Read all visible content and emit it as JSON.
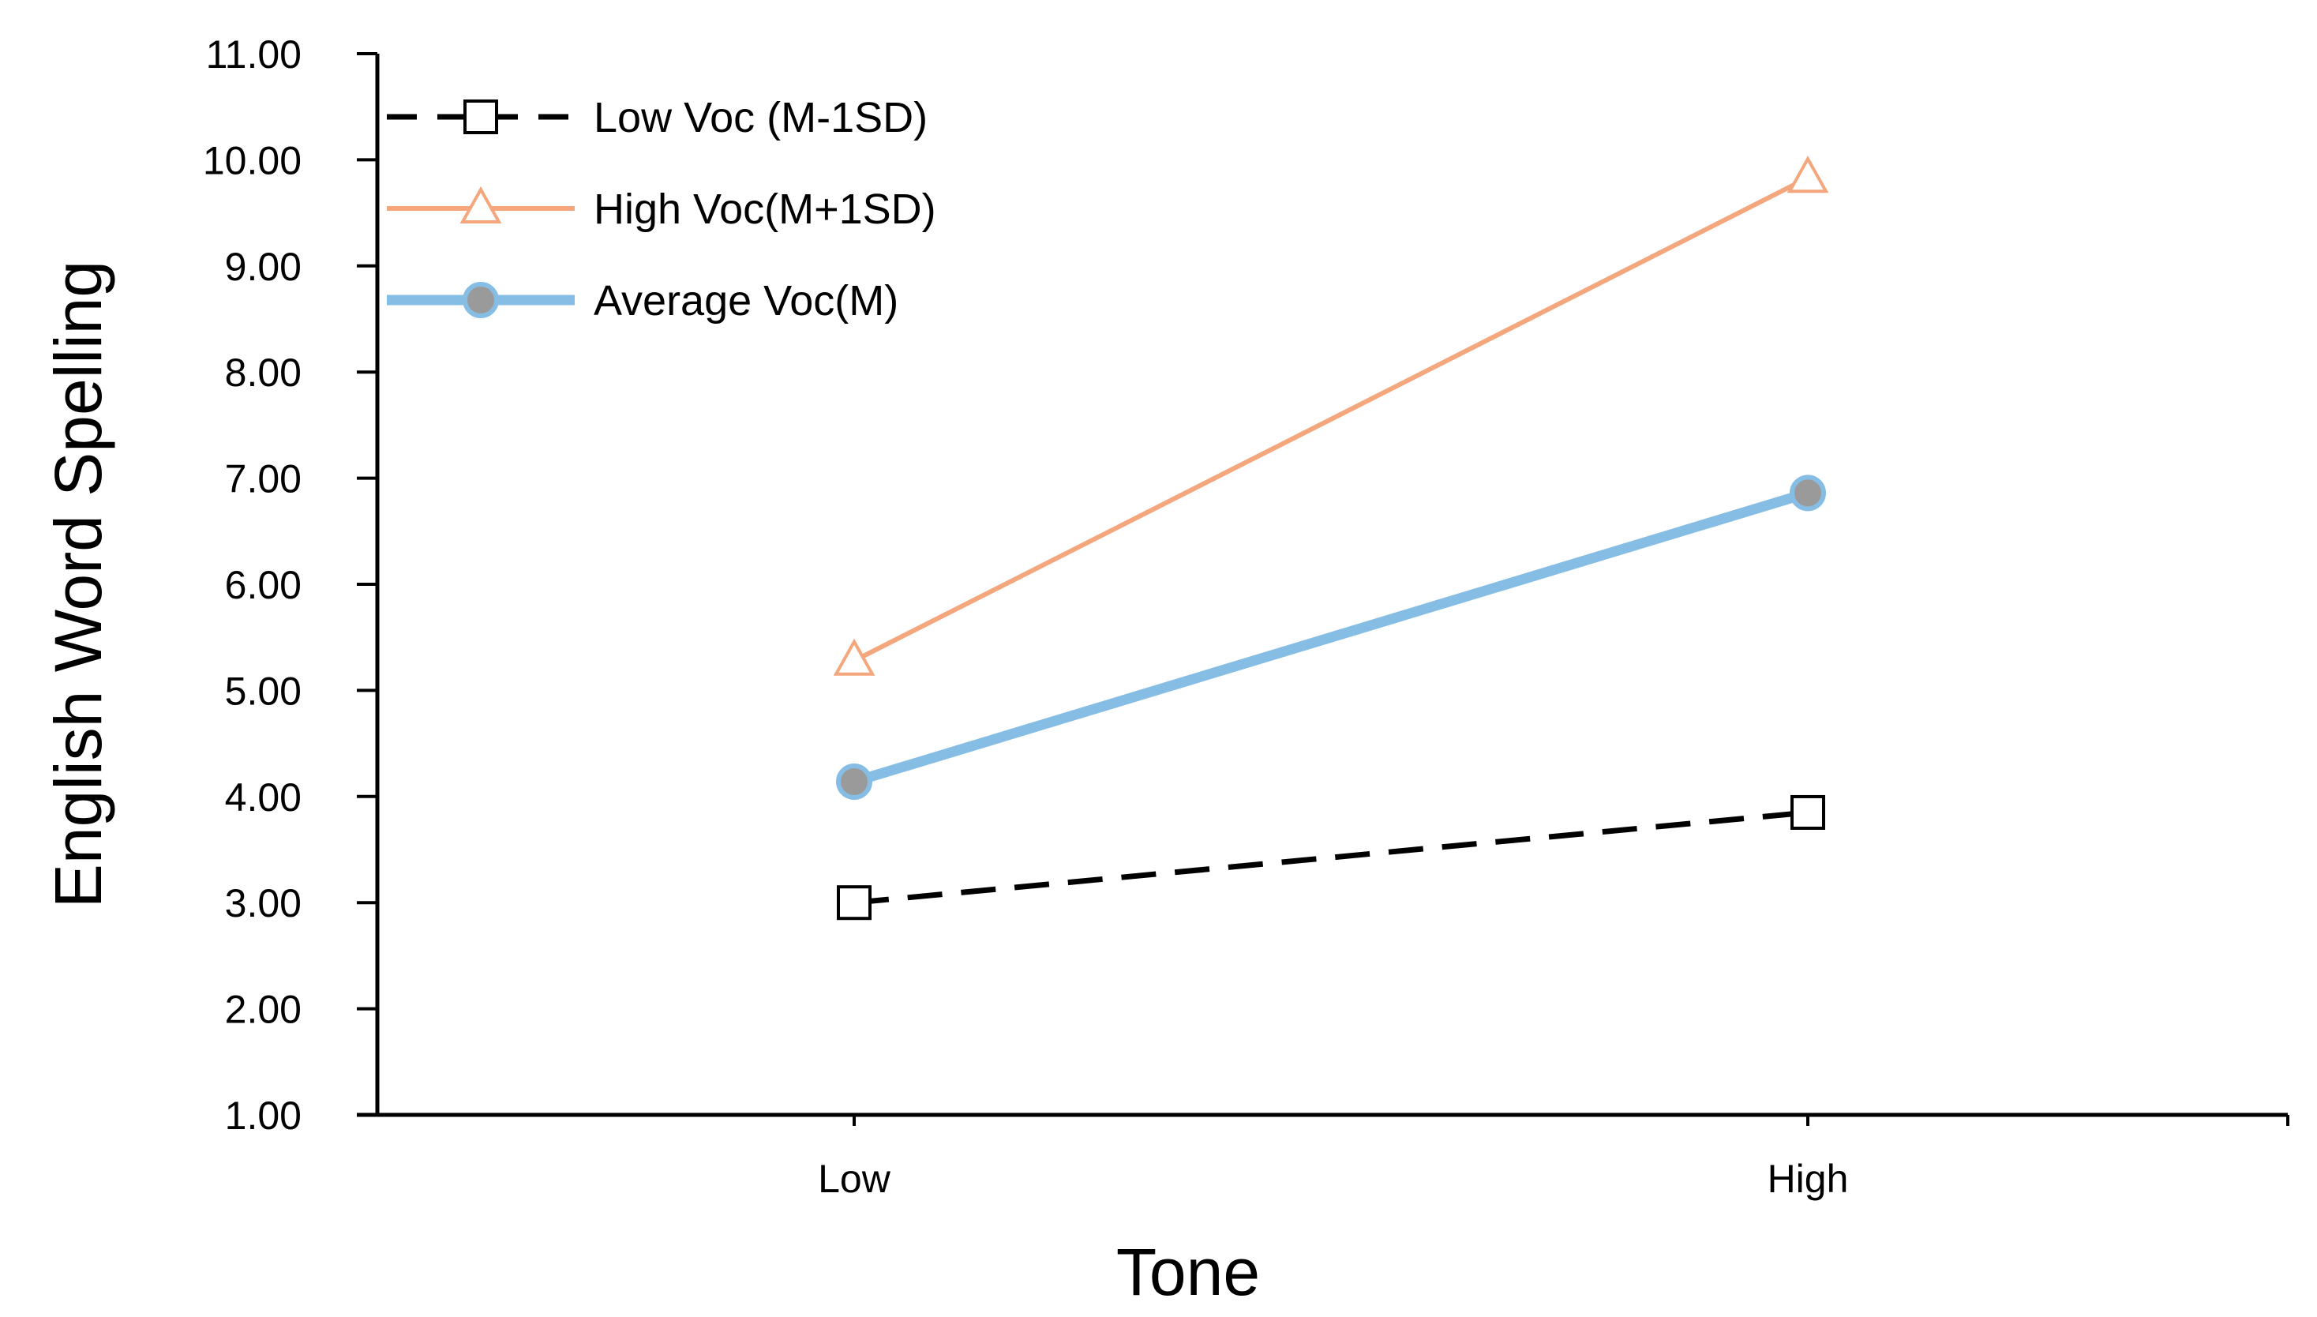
{
  "chart_data": {
    "type": "line",
    "title": "",
    "xlabel": "Tone",
    "ylabel": "English Word Spelling",
    "categories": [
      "Low",
      "High"
    ],
    "ylim": [
      1.0,
      11.0
    ],
    "yticks": [
      "1.00",
      "2.00",
      "3.00",
      "4.00",
      "5.00",
      "6.00",
      "7.00",
      "8.00",
      "9.00",
      "10.00",
      "11.00"
    ],
    "grid": false,
    "legend_position": "top-left",
    "series": [
      {
        "name": "Low Voc (M-1SD)",
        "values": [
          3.0,
          3.85
        ],
        "color": "#000000",
        "line_style": "dashed",
        "marker": "square"
      },
      {
        "name": "High Voc(M+1SD)",
        "values": [
          5.28,
          9.83
        ],
        "color": "#F4A77C",
        "line_style": "solid",
        "marker": "triangle"
      },
      {
        "name": "Average Voc(M)",
        "values": [
          4.14,
          6.86
        ],
        "color": "#85BDE4",
        "marker_fill": "#9A9A9A",
        "line_style": "solid-thick",
        "marker": "circle"
      }
    ]
  }
}
